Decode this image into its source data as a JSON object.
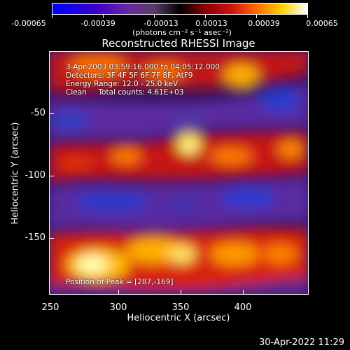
{
  "colorbar": {
    "tick_labels": [
      "-0.00065",
      "-0.00039",
      "-0.00013",
      "0.00013",
      "0.00039",
      "0.00065"
    ],
    "units": "(photons cm⁻² s⁻¹ asec⁻²)"
  },
  "title": "Reconstructed RHESSI Image",
  "info": {
    "line1": "3-Apr-2003 03:59:16.000 to 04:05:12.000",
    "line2": "Detectors: 3F 4F 5F 6F 7F 8F, AtF9",
    "line3": "Energy Range: 12.0 - 25.0 keV",
    "line4": "Clean     Total counts: 4.61E+03"
  },
  "peak": "Position of Peak = [287,-169]",
  "axes": {
    "x_ticks": [
      "250",
      "300",
      "350",
      "400"
    ],
    "y_ticks": [
      "-50",
      "-100",
      "-150"
    ],
    "xlabel": "Heliocentric X (arcsec)",
    "ylabel": "Heliocentric Y (arcsec)"
  },
  "footer": "30-Apr-2022 11:29"
}
